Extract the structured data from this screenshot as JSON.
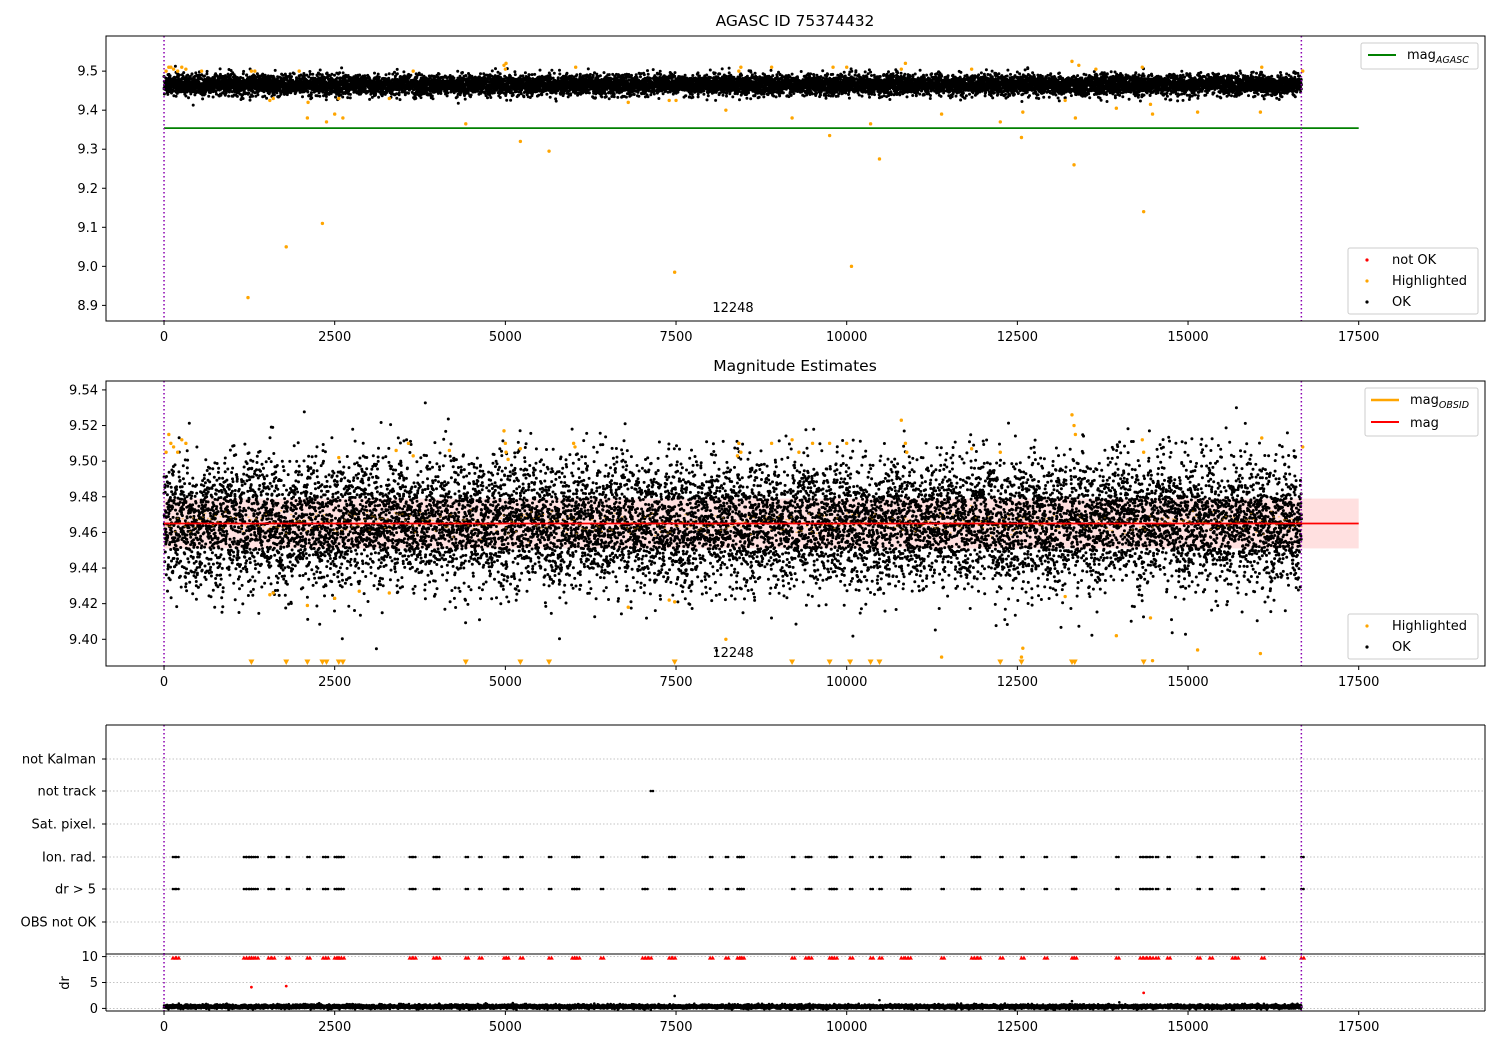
{
  "chart_data": [
    {
      "type": "scatter",
      "title": "AGASC ID 75374432",
      "xlabel": "",
      "ylabel": "",
      "xlim": [
        -850,
        19350
      ],
      "ylim": [
        8.86,
        9.59
      ],
      "xticks": [
        0,
        2500,
        5000,
        7500,
        10000,
        12500,
        15000,
        17500
      ],
      "yticks": [
        8.9,
        9.0,
        9.1,
        9.2,
        9.3,
        9.4,
        9.5
      ],
      "ytick_labels": [
        "8.9",
        "9.0",
        "9.1",
        "9.2",
        "9.3",
        "9.4",
        "9.5"
      ],
      "grid": false,
      "vlines": [
        0,
        16660
      ],
      "vline_color": "#8b00b0",
      "hline": {
        "name": "mag",
        "subscript": "AGASC",
        "y": 9.354,
        "x": [
          0,
          17500
        ],
        "color": "#008000"
      },
      "annotation": {
        "text": "12248",
        "x": 8250,
        "y": 8.9
      },
      "legend_upper": {
        "placement": "top-right",
        "entries": [
          {
            "name": "mag",
            "subscript": "AGASC",
            "color": "#008000",
            "marker": "line"
          }
        ]
      },
      "legend_lower": {
        "placement": "bottom-right",
        "entries": [
          {
            "name": "not OK",
            "color": "#ff0000",
            "marker": "point"
          },
          {
            "name": "Highlighted",
            "color": "#ffa500",
            "marker": "point"
          },
          {
            "name": "OK",
            "color": "#000000",
            "marker": "point"
          }
        ]
      },
      "series": [
        {
          "name": "OK",
          "color": "#000000",
          "style": "dense band",
          "x_range": [
            0,
            16660
          ],
          "y_center": 9.465,
          "y_halfwidth": 0.026,
          "approx_points": 12248
        },
        {
          "name": "Highlighted",
          "color": "#ffa500",
          "x": [
            30,
            70,
            100,
            140,
            200,
            260,
            320,
            550,
            1230,
            1280,
            1330,
            1550,
            1600,
            1790,
            1980,
            2100,
            2110,
            2320,
            2380,
            2500,
            2560,
            2620,
            3300,
            3650,
            4420,
            4980,
            5000,
            5010,
            5220,
            5640,
            6030,
            6800,
            7400,
            7480,
            7500,
            8230,
            8420,
            8450,
            8900,
            9200,
            9750,
            9800,
            10000,
            10070,
            10350,
            10480,
            10800,
            10860,
            11390,
            11830,
            12250,
            12560,
            12580,
            13200,
            13300,
            13330,
            13350,
            13400,
            13650,
            13950,
            14330,
            14350,
            14450,
            14480,
            15140,
            16060,
            16080,
            16680
          ],
          "y": [
            9.5,
            9.51,
            9.51,
            9.505,
            9.5,
            9.51,
            9.505,
            9.5,
            8.92,
            9.5,
            9.5,
            9.425,
            9.43,
            9.05,
            9.5,
            9.38,
            9.42,
            9.11,
            9.37,
            9.39,
            9.43,
            9.38,
            9.43,
            9.5,
            9.365,
            9.515,
            9.505,
            9.52,
            9.32,
            9.295,
            9.51,
            9.42,
            9.425,
            8.985,
            9.425,
            9.4,
            9.5,
            9.51,
            9.51,
            9.38,
            9.335,
            9.51,
            9.51,
            9.0,
            9.365,
            9.275,
            9.505,
            9.52,
            9.39,
            9.505,
            9.37,
            9.33,
            9.395,
            9.425,
            9.525,
            9.26,
            9.38,
            9.515,
            9.505,
            9.405,
            9.51,
            9.14,
            9.415,
            9.39,
            9.395,
            9.395,
            9.51,
            9.5
          ]
        }
      ]
    },
    {
      "type": "scatter",
      "title": "Magnitude Estimates",
      "xlabel": "",
      "ylabel": "",
      "xlim": [
        -850,
        19350
      ],
      "ylim": [
        9.385,
        9.545
      ],
      "xticks": [
        0,
        2500,
        5000,
        7500,
        10000,
        12500,
        15000,
        17500
      ],
      "yticks": [
        9.4,
        9.42,
        9.44,
        9.46,
        9.48,
        9.5,
        9.52,
        9.54
      ],
      "ytick_labels": [
        "9.40",
        "9.42",
        "9.44",
        "9.46",
        "9.48",
        "9.50",
        "9.52",
        "9.54"
      ],
      "grid": false,
      "vlines": [
        0,
        16660
      ],
      "vline_color": "#8b00b0",
      "mean_line": {
        "name": "mag",
        "y": 9.465,
        "x": [
          0,
          17500
        ],
        "color": "#ff0000"
      },
      "mean_band": {
        "y": [
          9.451,
          9.479
        ],
        "x": [
          0,
          17500
        ],
        "color": "#ff0000"
      },
      "obsid_segments": {
        "name": "mag",
        "subscript": "OBSID",
        "color": "#ffa500",
        "y": 9.465
      },
      "annotation": {
        "text": "12248",
        "x": 8250,
        "y": 9.39
      },
      "below_range_markers": {
        "marker": "triangle-down",
        "color": "#ffa500",
        "y": 9.387,
        "x": [
          1280,
          1790,
          2100,
          2320,
          2380,
          2560,
          2620,
          4420,
          5220,
          5640,
          7480,
          9200,
          9750,
          10050,
          10350,
          10480,
          12250,
          12560,
          13300,
          13340,
          14350
        ]
      },
      "legend_upper": {
        "placement": "top-right",
        "entries": [
          {
            "name": "mag",
            "subscript": "OBSID",
            "color": "#ffa500",
            "marker": "line"
          },
          {
            "name": "mag",
            "subscript": "",
            "color": "#ff0000",
            "marker": "line"
          }
        ]
      },
      "legend_lower": {
        "placement": "bottom-right",
        "entries": [
          {
            "name": "Highlighted",
            "color": "#ffa500",
            "marker": "point"
          },
          {
            "name": "OK",
            "color": "#000000",
            "marker": "point"
          }
        ]
      },
      "series": [
        {
          "name": "OK",
          "color": "#000000",
          "style": "dense band",
          "x_range": [
            0,
            16660
          ],
          "y_center": 9.465,
          "y_halfwidth": 0.036,
          "approx_points": 12248
        },
        {
          "name": "Highlighted",
          "color": "#ffa500",
          "x": [
            30,
            70,
            100,
            140,
            200,
            260,
            320,
            1550,
            1600,
            2100,
            2500,
            2560,
            2860,
            3300,
            3400,
            3580,
            3650,
            4180,
            4980,
            5000,
            5010,
            5040,
            5220,
            6000,
            6020,
            6800,
            7400,
            7480,
            8230,
            8400,
            8420,
            8450,
            8900,
            9200,
            9300,
            9500,
            9750,
            10000,
            10800,
            10860,
            10880,
            11390,
            11830,
            12250,
            12560,
            12580,
            13200,
            13300,
            13330,
            13350,
            13950,
            14330,
            14350,
            14450,
            14480,
            15140,
            16060,
            16080,
            16680
          ],
          "y": [
            9.505,
            9.515,
            9.51,
            9.508,
            9.505,
            9.512,
            9.51,
            9.425,
            9.426,
            9.419,
            9.423,
            9.502,
            9.427,
            9.426,
            9.506,
            9.51,
            9.503,
            9.506,
            9.517,
            9.51,
            9.505,
            9.501,
            9.507,
            9.51,
            9.508,
            9.418,
            9.422,
            9.421,
            9.4,
            9.503,
            9.51,
            9.505,
            9.51,
            9.512,
            9.505,
            9.51,
            9.51,
            9.51,
            9.523,
            9.51,
            9.505,
            9.39,
            9.507,
            9.505,
            9.39,
            9.395,
            9.424,
            9.526,
            9.52,
            9.515,
            9.402,
            9.512,
            9.505,
            9.412,
            9.388,
            9.394,
            9.392,
            9.513,
            9.508
          ]
        }
      ]
    },
    {
      "type": "scatter",
      "title": "",
      "xlabel": "",
      "ylabel": "",
      "xlim": [
        -850,
        19350
      ],
      "flag_rows": [
        "not Kalman",
        "not track",
        "Sat. pixel.",
        "Ion. rad.",
        "dr > 5",
        "OBS not OK"
      ],
      "grid": true,
      "vlines": [
        0,
        16660
      ],
      "vline_color": "#8b00b0",
      "flags": {
        "not Kalman": [],
        "not track": [
          7130
        ],
        "Sat. pixel.": [],
        "Ion. rad.": [
          130,
          180,
          1170,
          1210,
          1250,
          1280,
          1340,
          1530,
          1580,
          1800,
          2100,
          2330,
          2370,
          2500,
          2530,
          2560,
          2600,
          3600,
          3650,
          3950,
          4000,
          4420,
          4620,
          4980,
          5010,
          5220,
          5640,
          5980,
          6010,
          6050,
          6400,
          7010,
          7050,
          7400,
          7450,
          8000,
          8230,
          8400,
          8430,
          8460,
          9200,
          9400,
          9450,
          9750,
          9780,
          9820,
          10050,
          10350,
          10480,
          10800,
          10860,
          10900,
          11390,
          11830,
          11870,
          11920,
          12250,
          12560,
          12900,
          13300,
          13330,
          13950,
          14300,
          14350,
          14400,
          14450,
          14530,
          14700,
          15140,
          15320,
          15650,
          15700,
          16080,
          16660
        ],
        "dr > 5": [
          130,
          180,
          1170,
          1210,
          1250,
          1280,
          1340,
          1530,
          1580,
          1800,
          2100,
          2330,
          2370,
          2500,
          2530,
          2560,
          2600,
          3600,
          3650,
          3950,
          4000,
          4420,
          4620,
          4980,
          5010,
          5220,
          5640,
          5980,
          6010,
          6050,
          6400,
          7010,
          7050,
          7400,
          7450,
          8000,
          8230,
          8400,
          8430,
          8460,
          9200,
          9400,
          9450,
          9750,
          9780,
          9820,
          10050,
          10350,
          10480,
          10800,
          10860,
          10900,
          11390,
          11830,
          11870,
          11920,
          12250,
          12560,
          12900,
          13300,
          13330,
          13950,
          14300,
          14350,
          14400,
          14450,
          14530,
          14700,
          15140,
          15320,
          15650,
          15700,
          16080,
          16660
        ],
        "OBS not OK": []
      }
    },
    {
      "type": "scatter",
      "title": "",
      "xlabel": "",
      "ylabel": "dr",
      "xlim": [
        -850,
        19350
      ],
      "ylim": [
        -0.5,
        10.5
      ],
      "xticks": [
        0,
        2500,
        5000,
        7500,
        10000,
        12500,
        15000,
        17500
      ],
      "yticks": [
        0,
        5,
        10
      ],
      "ytick_labels": [
        "0",
        "5",
        "10"
      ],
      "grid": true,
      "vlines": [
        0,
        16660
      ],
      "vline_color": "#8b00b0",
      "series": [
        {
          "name": "OK",
          "color": "#000000",
          "style": "dense band",
          "x_range": [
            0,
            16660
          ],
          "y_center": 0.35,
          "y_halfwidth": 0.35,
          "approx_points": 12248
        },
        {
          "name": "not OK",
          "color": "#ff0000",
          "marker": "triangle-up",
          "y": 9.8,
          "x": [
            130,
            180,
            1170,
            1210,
            1250,
            1280,
            1340,
            1530,
            1580,
            1800,
            2100,
            2330,
            2370,
            2500,
            2530,
            2560,
            2600,
            3600,
            3650,
            3950,
            4000,
            4420,
            4620,
            4980,
            5010,
            5220,
            5640,
            5980,
            6010,
            6050,
            6400,
            7010,
            7050,
            7100,
            7400,
            7450,
            8000,
            8230,
            8400,
            8430,
            8460,
            9200,
            9400,
            9450,
            9750,
            9780,
            9820,
            10050,
            10350,
            10480,
            10800,
            10860,
            10900,
            11390,
            11830,
            11870,
            11920,
            12250,
            12560,
            12900,
            13300,
            13330,
            13950,
            14300,
            14350,
            14400,
            14450,
            14530,
            14700,
            15140,
            15320,
            15650,
            15700,
            16080,
            16660
          ]
        },
        {
          "name": "not OK",
          "color": "#ff0000",
          "x": [
            1280,
            1790,
            14350
          ],
          "y": [
            4.1,
            4.3,
            3.0
          ]
        },
        {
          "name": "OK",
          "color": "#000000",
          "x": [
            7480,
            10480,
            13300
          ],
          "y": [
            2.4,
            1.6,
            1.4
          ]
        }
      ]
    }
  ]
}
